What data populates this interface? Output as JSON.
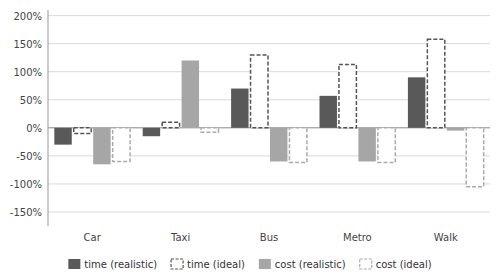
{
  "chart_data": {
    "type": "bar",
    "categories": [
      "Car",
      "Taxi",
      "Bus",
      "Metro",
      "Walk"
    ],
    "series": [
      {
        "name": "time (realistic)",
        "color": "#595959",
        "line_style": "solid",
        "values": [
          -30,
          -15,
          70,
          57,
          90
        ]
      },
      {
        "name": "time (ideal)",
        "color": "#555555",
        "line_style": "dashed",
        "values": [
          -10,
          10,
          130,
          113,
          158
        ]
      },
      {
        "name": "cost (realistic)",
        "color": "#a6a6a6",
        "line_style": "solid",
        "values": [
          -65,
          120,
          -60,
          -60,
          -5
        ]
      },
      {
        "name": "cost (ideal)",
        "color": "#aaaaaa",
        "line_style": "dashed",
        "values": [
          -60,
          -8,
          -62,
          -62,
          -105
        ]
      }
    ],
    "ylim": [
      -175,
      210
    ],
    "yticks": [
      {
        "value": -150,
        "label": "-150%"
      },
      {
        "value": -100,
        "label": "-100%"
      },
      {
        "value": -50,
        "label": "-50%"
      },
      {
        "value": 0,
        "label": "0%"
      },
      {
        "value": 50,
        "label": "50%"
      },
      {
        "value": 100,
        "label": "100%"
      },
      {
        "value": 150,
        "label": "150%"
      },
      {
        "value": 200,
        "label": "200%"
      }
    ],
    "grid": true,
    "legend": "bottom"
  }
}
